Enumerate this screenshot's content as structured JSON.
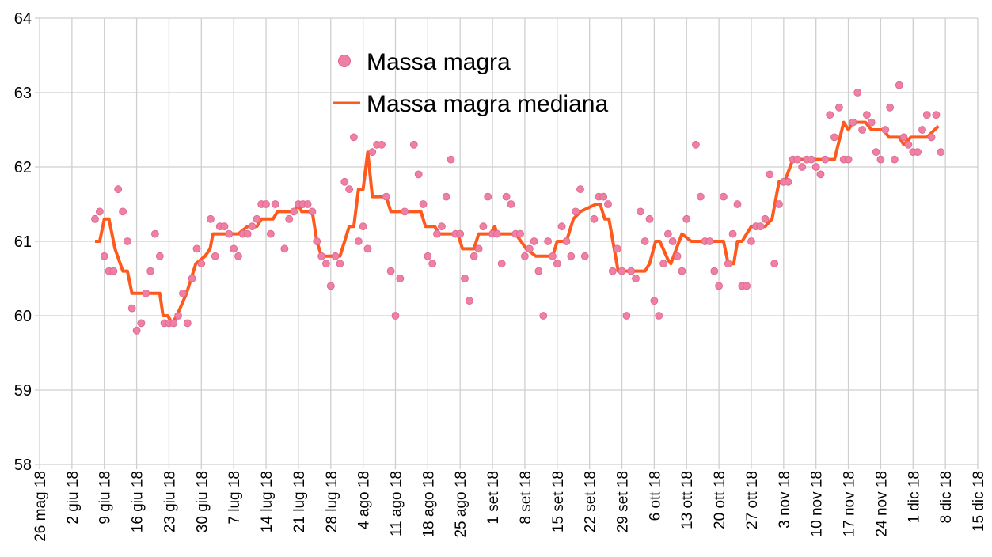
{
  "chart_data": {
    "type": "scatter",
    "title": "",
    "xlabel": "",
    "ylabel": "",
    "x_unit": "days since 26 mag 18",
    "xlim": [
      0,
      203
    ],
    "ylim": [
      58,
      64
    ],
    "grid": true,
    "legend_placement": "top-center",
    "yticks": [
      "58",
      "59",
      "60",
      "61",
      "62",
      "63",
      "64"
    ],
    "xticks": [
      "26 mag 18",
      "2 giu 18",
      "9 giu 18",
      "16 giu 18",
      "23 giu 18",
      "30 giu 18",
      "7 lug 18",
      "14 lug 18",
      "21 lug 18",
      "28 lug 18",
      "4 ago 18",
      "11 ago 18",
      "18 ago 18",
      "25 ago 18",
      "1 set 18",
      "8 set 18",
      "15 set 18",
      "22 set 18",
      "29 set 18",
      "6 ott 18",
      "13 ott 18",
      "20 ott 18",
      "27 ott 18",
      "3 nov 18",
      "10 nov 18",
      "17 nov 18",
      "24 nov 18",
      "1 dic 18",
      "8 dic 18",
      "15 dic 18"
    ],
    "series": [
      {
        "name": "Massa magra",
        "kind": "scatter",
        "color": "#f07fa4",
        "points": [
          [
            12,
            61.3
          ],
          [
            13,
            61.4
          ],
          [
            14,
            60.8
          ],
          [
            15,
            60.6
          ],
          [
            16,
            60.6
          ],
          [
            17,
            61.7
          ],
          [
            18,
            61.4
          ],
          [
            19,
            61.0
          ],
          [
            20,
            60.1
          ],
          [
            21,
            59.8
          ],
          [
            22,
            59.9
          ],
          [
            23,
            60.3
          ],
          [
            24,
            60.6
          ],
          [
            25,
            61.1
          ],
          [
            26,
            60.8
          ],
          [
            27,
            59.9
          ],
          [
            28,
            59.9
          ],
          [
            29,
            59.9
          ],
          [
            30,
            60.0
          ],
          [
            31,
            60.3
          ],
          [
            32,
            59.9
          ],
          [
            33,
            60.5
          ],
          [
            34,
            60.9
          ],
          [
            35,
            60.7
          ],
          [
            37,
            61.3
          ],
          [
            38,
            60.8
          ],
          [
            39,
            61.2
          ],
          [
            40,
            61.2
          ],
          [
            41,
            61.1
          ],
          [
            42,
            60.9
          ],
          [
            43,
            60.8
          ],
          [
            44,
            61.1
          ],
          [
            45,
            61.1
          ],
          [
            46,
            61.2
          ],
          [
            47,
            61.3
          ],
          [
            48,
            61.5
          ],
          [
            49,
            61.5
          ],
          [
            50,
            61.1
          ],
          [
            51,
            61.5
          ],
          [
            53,
            60.9
          ],
          [
            54,
            61.3
          ],
          [
            55,
            61.4
          ],
          [
            56,
            61.5
          ],
          [
            57,
            61.5
          ],
          [
            58,
            61.5
          ],
          [
            59,
            61.4
          ],
          [
            60,
            61.0
          ],
          [
            61,
            60.8
          ],
          [
            62,
            60.7
          ],
          [
            63,
            60.4
          ],
          [
            64,
            60.8
          ],
          [
            65,
            60.7
          ],
          [
            66,
            61.8
          ],
          [
            67,
            61.7
          ],
          [
            68,
            62.4
          ],
          [
            69,
            61.0
          ],
          [
            70,
            61.2
          ],
          [
            71,
            60.9
          ],
          [
            72,
            62.2
          ],
          [
            73,
            62.3
          ],
          [
            74,
            62.3
          ],
          [
            75,
            61.6
          ],
          [
            76,
            60.6
          ],
          [
            77,
            60.0
          ],
          [
            78,
            60.5
          ],
          [
            79,
            61.4
          ],
          [
            81,
            62.3
          ],
          [
            82,
            61.9
          ],
          [
            83,
            61.5
          ],
          [
            84,
            60.8
          ],
          [
            85,
            60.7
          ],
          [
            86,
            61.1
          ],
          [
            87,
            61.2
          ],
          [
            88,
            61.6
          ],
          [
            89,
            62.1
          ],
          [
            90,
            61.1
          ],
          [
            91,
            61.1
          ],
          [
            92,
            60.5
          ],
          [
            93,
            60.2
          ],
          [
            94,
            60.8
          ],
          [
            95,
            60.9
          ],
          [
            96,
            61.2
          ],
          [
            97,
            61.6
          ],
          [
            98,
            61.1
          ],
          [
            99,
            61.1
          ],
          [
            100,
            60.7
          ],
          [
            101,
            61.6
          ],
          [
            102,
            61.5
          ],
          [
            103,
            61.1
          ],
          [
            104,
            61.1
          ],
          [
            105,
            60.8
          ],
          [
            106,
            60.9
          ],
          [
            107,
            61.0
          ],
          [
            108,
            60.6
          ],
          [
            109,
            60.0
          ],
          [
            110,
            61.0
          ],
          [
            111,
            60.8
          ],
          [
            112,
            60.7
          ],
          [
            113,
            61.2
          ],
          [
            114,
            61.0
          ],
          [
            115,
            60.8
          ],
          [
            116,
            61.4
          ],
          [
            117,
            61.7
          ],
          [
            118,
            60.8
          ],
          [
            120,
            61.3
          ],
          [
            121,
            61.6
          ],
          [
            122,
            61.6
          ],
          [
            123,
            61.5
          ],
          [
            124,
            60.6
          ],
          [
            125,
            60.9
          ],
          [
            126,
            60.6
          ],
          [
            127,
            60.0
          ],
          [
            128,
            60.6
          ],
          [
            129,
            60.5
          ],
          [
            130,
            61.4
          ],
          [
            131,
            61.0
          ],
          [
            132,
            61.3
          ],
          [
            133,
            60.2
          ],
          [
            134,
            60.0
          ],
          [
            135,
            60.7
          ],
          [
            136,
            61.1
          ],
          [
            137,
            61.0
          ],
          [
            138,
            60.8
          ],
          [
            139,
            60.6
          ],
          [
            140,
            61.3
          ],
          [
            142,
            62.3
          ],
          [
            143,
            61.6
          ],
          [
            144,
            61.0
          ],
          [
            145,
            61.0
          ],
          [
            146,
            60.6
          ],
          [
            147,
            60.4
          ],
          [
            148,
            61.6
          ],
          [
            149,
            60.7
          ],
          [
            150,
            61.1
          ],
          [
            151,
            61.5
          ],
          [
            152,
            60.4
          ],
          [
            153,
            60.4
          ],
          [
            154,
            61.0
          ],
          [
            155,
            61.2
          ],
          [
            156,
            61.2
          ],
          [
            157,
            61.3
          ],
          [
            158,
            61.9
          ],
          [
            159,
            60.7
          ],
          [
            160,
            61.5
          ],
          [
            161,
            61.8
          ],
          [
            162,
            61.8
          ],
          [
            163,
            62.1
          ],
          [
            164,
            62.1
          ],
          [
            165,
            62.0
          ],
          [
            166,
            62.1
          ],
          [
            167,
            62.1
          ],
          [
            168,
            62.0
          ],
          [
            169,
            61.9
          ],
          [
            170,
            62.1
          ],
          [
            171,
            62.7
          ],
          [
            172,
            62.4
          ],
          [
            173,
            62.8
          ],
          [
            174,
            62.1
          ],
          [
            175,
            62.1
          ],
          [
            176,
            62.6
          ],
          [
            177,
            63.0
          ],
          [
            178,
            62.5
          ],
          [
            179,
            62.7
          ],
          [
            180,
            62.6
          ],
          [
            181,
            62.2
          ],
          [
            182,
            62.1
          ],
          [
            183,
            62.5
          ],
          [
            184,
            62.8
          ],
          [
            185,
            62.1
          ],
          [
            186,
            63.1
          ],
          [
            187,
            62.4
          ],
          [
            188,
            62.3
          ],
          [
            189,
            62.2
          ],
          [
            190,
            62.2
          ],
          [
            191,
            62.5
          ],
          [
            192,
            62.7
          ],
          [
            193,
            62.4
          ],
          [
            194,
            62.7
          ],
          [
            195,
            62.2
          ]
        ]
      },
      {
        "name": "Massa magra mediana",
        "kind": "line",
        "color": "#ff5a1e",
        "points": [
          [
            12,
            61.0
          ],
          [
            13,
            61.0
          ],
          [
            14,
            61.3
          ],
          [
            15,
            61.3
          ],
          [
            16.3,
            60.9
          ],
          [
            18,
            60.6
          ],
          [
            19,
            60.6
          ],
          [
            20,
            60.3
          ],
          [
            26,
            60.3
          ],
          [
            26.7,
            60.0
          ],
          [
            27.7,
            60.0
          ],
          [
            28.7,
            59.9
          ],
          [
            29.7,
            60.0
          ],
          [
            31.8,
            60.3
          ],
          [
            32.8,
            60.5
          ],
          [
            33.8,
            60.7
          ],
          [
            35.8,
            60.8
          ],
          [
            36.9,
            60.9
          ],
          [
            37.5,
            61.1
          ],
          [
            43,
            61.1
          ],
          [
            45,
            61.2
          ],
          [
            47,
            61.2
          ],
          [
            48,
            61.3
          ],
          [
            50.5,
            61.3
          ],
          [
            51.5,
            61.4
          ],
          [
            55,
            61.4
          ],
          [
            56,
            61.5
          ],
          [
            56.7,
            61.4
          ],
          [
            59,
            61.4
          ],
          [
            60,
            61.0
          ],
          [
            61,
            60.8
          ],
          [
            65,
            60.8
          ],
          [
            67,
            61.2
          ],
          [
            68,
            61.2
          ],
          [
            69,
            61.7
          ],
          [
            70,
            61.7
          ],
          [
            71,
            62.2
          ],
          [
            72,
            61.6
          ],
          [
            75,
            61.6
          ],
          [
            76,
            61.4
          ],
          [
            82.5,
            61.4
          ],
          [
            83.5,
            61.2
          ],
          [
            85.5,
            61.2
          ],
          [
            86.5,
            61.1
          ],
          [
            90.5,
            61.1
          ],
          [
            91.5,
            60.9
          ],
          [
            94,
            60.9
          ],
          [
            95,
            61.1
          ],
          [
            97.5,
            61.1
          ],
          [
            98.5,
            61.2
          ],
          [
            99,
            61.1
          ],
          [
            103,
            61.1
          ],
          [
            105.3,
            60.9
          ],
          [
            107.4,
            60.8
          ],
          [
            111,
            60.8
          ],
          [
            112,
            61.0
          ],
          [
            114,
            61.0
          ],
          [
            115.5,
            61.3
          ],
          [
            117,
            61.4
          ],
          [
            120.4,
            61.5
          ],
          [
            121.3,
            61.5
          ],
          [
            122.3,
            61.3
          ],
          [
            123.2,
            61.3
          ],
          [
            125.2,
            60.6
          ],
          [
            131,
            60.6
          ],
          [
            132,
            60.7
          ],
          [
            133.3,
            61.0
          ],
          [
            134.2,
            61.0
          ],
          [
            136,
            60.75
          ],
          [
            136.6,
            60.7
          ],
          [
            139,
            61.1
          ],
          [
            141,
            61.0
          ],
          [
            148,
            61.0
          ],
          [
            149,
            60.7
          ],
          [
            150.2,
            60.7
          ],
          [
            151,
            61.0
          ],
          [
            152,
            61.0
          ],
          [
            154,
            61.2
          ],
          [
            157,
            61.2
          ],
          [
            158.5,
            61.3
          ],
          [
            160,
            61.8
          ],
          [
            161.2,
            61.8
          ],
          [
            163,
            62.1
          ],
          [
            172,
            62.1
          ],
          [
            174,
            62.6
          ],
          [
            175,
            62.5
          ],
          [
            176,
            62.6
          ],
          [
            178.7,
            62.6
          ],
          [
            180,
            62.5
          ],
          [
            182.6,
            62.5
          ],
          [
            183.8,
            62.4
          ],
          [
            186,
            62.4
          ],
          [
            187,
            62.3
          ],
          [
            188.5,
            62.4
          ],
          [
            192,
            62.4
          ],
          [
            194.5,
            62.55
          ]
        ]
      }
    ]
  }
}
